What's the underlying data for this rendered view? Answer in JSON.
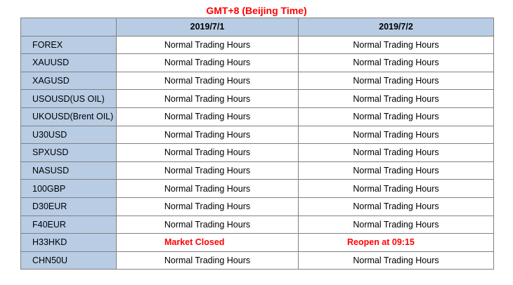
{
  "title": "GMT+8 (Beijing Time)",
  "columns": [
    "",
    "2019/7/1",
    "2019/7/2"
  ],
  "rows": [
    {
      "symbol": "FOREX",
      "d1": "Normal Trading Hours",
      "d2": "Normal Trading Hours"
    },
    {
      "symbol": "XAUUSD",
      "d1": "Normal Trading Hours",
      "d2": "Normal Trading Hours"
    },
    {
      "symbol": "XAGUSD",
      "d1": "Normal Trading Hours",
      "d2": "Normal Trading Hours"
    },
    {
      "symbol": "USOUSD(US OIL)",
      "d1": "Normal Trading Hours",
      "d2": "Normal Trading Hours"
    },
    {
      "symbol": "UKOUSD(Brent OIL)",
      "d1": "Normal Trading Hours",
      "d2": "Normal Trading Hours"
    },
    {
      "symbol": "U30USD",
      "d1": "Normal Trading Hours",
      "d2": "Normal Trading Hours"
    },
    {
      "symbol": "SPXUSD",
      "d1": "Normal Trading Hours",
      "d2": "Normal Trading Hours"
    },
    {
      "symbol": "NASUSD",
      "d1": "Normal Trading Hours",
      "d2": "Normal Trading Hours"
    },
    {
      "symbol": "100GBP",
      "d1": "Normal Trading Hours",
      "d2": "Normal Trading Hours"
    },
    {
      "symbol": "D30EUR",
      "d1": "Normal Trading Hours",
      "d2": "Normal Trading Hours"
    },
    {
      "symbol": "F40EUR",
      "d1": "Normal Trading Hours",
      "d2": "Normal Trading Hours"
    },
    {
      "symbol": "H33HKD",
      "d1": "Market Closed",
      "d2": "Reopen at  09:15"
    },
    {
      "symbol": "CHN50U",
      "d1": "Normal Trading Hours",
      "d2": "Normal Trading Hours"
    }
  ],
  "colors": {
    "title": "#ff0000",
    "header_fill": "#b8cce4",
    "highlight_text": "#ff0000",
    "border": "#808080"
  }
}
